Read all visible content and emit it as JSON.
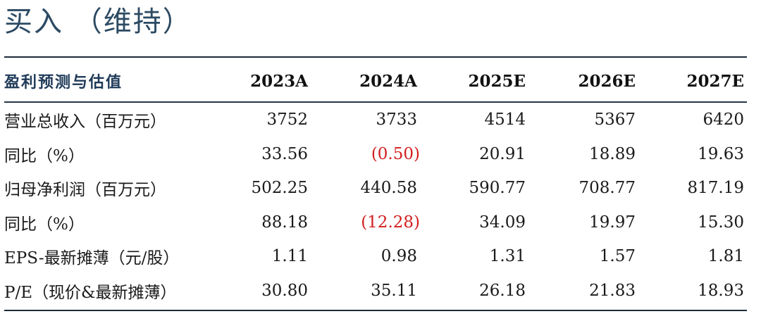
{
  "rating": "买入 （维持）",
  "table": {
    "header": {
      "label": "盈利预测与估值",
      "years": [
        "2023A",
        "2024A",
        "2025E",
        "2026E",
        "2027E"
      ]
    },
    "rows": [
      {
        "label": "营业总收入（百万元）",
        "values": [
          "3752",
          "3733",
          "4514",
          "5367",
          "6420"
        ]
      },
      {
        "label": "同比（%）",
        "values": [
          "33.56",
          "(0.50)",
          "20.91",
          "18.89",
          "19.63"
        ]
      },
      {
        "label": "归母净利润（百万元）",
        "values": [
          "502.25",
          "440.58",
          "590.77",
          "708.77",
          "817.19"
        ]
      },
      {
        "label": "同比（%）",
        "values": [
          "88.18",
          "(12.28)",
          "34.09",
          "19.97",
          "15.30"
        ]
      },
      {
        "label": "EPS-最新摊薄（元/股）",
        "values": [
          "1.11",
          "0.98",
          "1.31",
          "1.57",
          "1.81"
        ]
      },
      {
        "label": "P/E（现价&最新摊薄）",
        "values": [
          "30.80",
          "35.11",
          "26.18",
          "21.83",
          "18.93"
        ]
      }
    ]
  },
  "colors": {
    "rating_text": "#2c4a63",
    "header_label": "#1f3a58",
    "negative": "#d21e1e",
    "rule": "#1e2b38"
  }
}
